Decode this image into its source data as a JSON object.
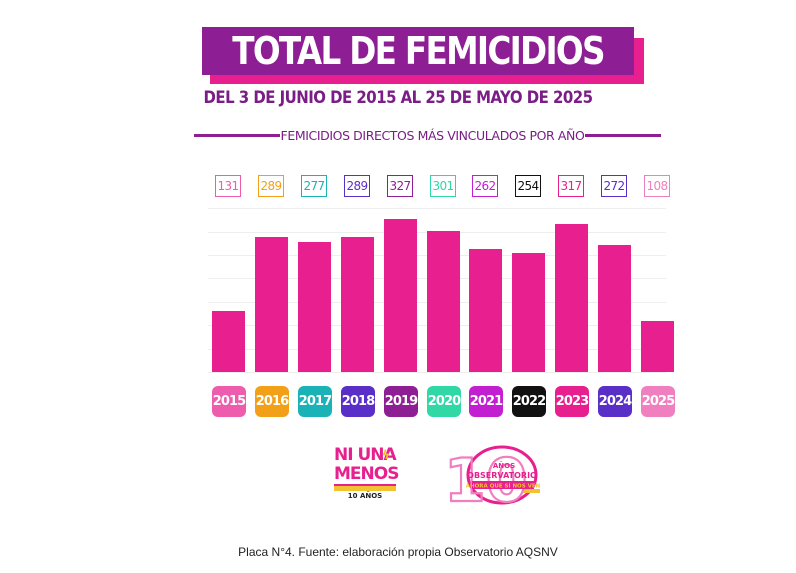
{
  "title": "TOTAL DE FEMICIDIOS",
  "subtitle": "DEL 3 DE JUNIO DE 2015 AL 25 DE MAYO DE 2025",
  "section_title": "FEMICIDIOS DIRECTOS MÁS VINCULADOS POR AÑO",
  "caption": "Placa N°4. Fuente: elaboración propia Observatorio AQSNV",
  "logos": {
    "ni_una_menos": {
      "line1": "NI UNA",
      "line2": "MENOS",
      "sub": "10 AÑOS"
    },
    "observatorio": {
      "number": "10",
      "word1": "AÑOS",
      "word2": "OBSERVATORIO",
      "word3": "AHORA QUE SÍ NOS VEN"
    }
  },
  "colors": {
    "bar": "#e8208f",
    "title_bg": "#8e1e94",
    "title_shadow": "#e8208f",
    "accent_purple": "#7a1d86"
  },
  "chart_data": {
    "type": "bar",
    "title": "TOTAL DE FEMICIDIOS",
    "subtitle": "FEMICIDIOS DIRECTOS MÁS VINCULADOS POR AÑO",
    "xlabel": "",
    "ylabel": "",
    "ylim": [
      0,
      350
    ],
    "grid": true,
    "categories": [
      "2015",
      "2016",
      "2017",
      "2018",
      "2019",
      "2020",
      "2021",
      "2022",
      "2023",
      "2024",
      "2025"
    ],
    "values": [
      131,
      289,
      277,
      289,
      327,
      301,
      262,
      254,
      317,
      272,
      108
    ],
    "category_colors": [
      "#ee5cae",
      "#f2a018",
      "#19b2b7",
      "#5a2fc8",
      "#8e1e94",
      "#2fd8a5",
      "#c21fd0",
      "#111111",
      "#e8208f",
      "#5a2fc8",
      "#f07fc0"
    ]
  }
}
